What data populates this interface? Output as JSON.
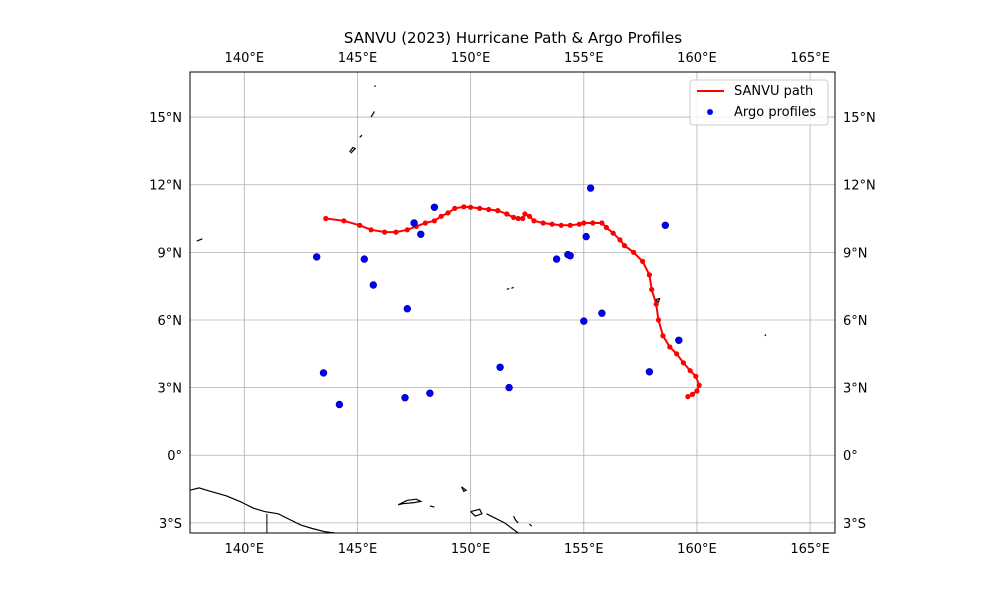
{
  "title": "SANVU (2023) Hurricane Path & Argo Profiles",
  "colors": {
    "path": "#ff0000",
    "argo": "#0000ff",
    "grid": "#b0b0b0",
    "coast": "#000000"
  },
  "chart_data": {
    "type": "map",
    "projection": "PlateCarree",
    "lon_range": [
      137.6,
      166.1
    ],
    "lat_range": [
      -3.45,
      17.0
    ],
    "lon_ticks": [
      {
        "value": 140,
        "label": "140°E"
      },
      {
        "value": 145,
        "label": "145°E"
      },
      {
        "value": 150,
        "label": "150°E"
      },
      {
        "value": 155,
        "label": "155°E"
      },
      {
        "value": 160,
        "label": "160°E"
      },
      {
        "value": 165,
        "label": "165°E"
      }
    ],
    "lat_ticks": [
      {
        "value": 15,
        "label": "15°N"
      },
      {
        "value": 12,
        "label": "12°N"
      },
      {
        "value": 9,
        "label": "9°N"
      },
      {
        "value": 6,
        "label": "6°N"
      },
      {
        "value": 3,
        "label": "3°N"
      },
      {
        "value": 0,
        "label": "0°"
      },
      {
        "value": -3,
        "label": "3°S"
      }
    ],
    "grid": true,
    "legend": {
      "placement": "top-right",
      "entries": [
        {
          "label": "SANVU path",
          "marker": "line"
        },
        {
          "label": "Argo profiles",
          "marker": "dot"
        }
      ]
    },
    "hurricane_path": [
      [
        143.6,
        10.5
      ],
      [
        144.4,
        10.4
      ],
      [
        145.1,
        10.2
      ],
      [
        145.6,
        10.0
      ],
      [
        146.2,
        9.9
      ],
      [
        146.7,
        9.9
      ],
      [
        147.2,
        10.0
      ],
      [
        147.6,
        10.15
      ],
      [
        148.0,
        10.3
      ],
      [
        148.4,
        10.4
      ],
      [
        148.7,
        10.6
      ],
      [
        149.0,
        10.75
      ],
      [
        149.3,
        10.95
      ],
      [
        149.7,
        11.02
      ],
      [
        150.0,
        11.0
      ],
      [
        150.4,
        10.95
      ],
      [
        150.8,
        10.9
      ],
      [
        151.2,
        10.85
      ],
      [
        151.6,
        10.7
      ],
      [
        151.9,
        10.55
      ],
      [
        152.1,
        10.5
      ],
      [
        152.3,
        10.5
      ],
      [
        152.4,
        10.7
      ],
      [
        152.6,
        10.6
      ],
      [
        152.8,
        10.4
      ],
      [
        153.2,
        10.3
      ],
      [
        153.6,
        10.25
      ],
      [
        154.0,
        10.2
      ],
      [
        154.4,
        10.2
      ],
      [
        154.8,
        10.25
      ],
      [
        155.0,
        10.3
      ],
      [
        155.4,
        10.3
      ],
      [
        155.8,
        10.3
      ],
      [
        156.0,
        10.1
      ],
      [
        156.3,
        9.85
      ],
      [
        156.6,
        9.55
      ],
      [
        156.8,
        9.3
      ],
      [
        157.2,
        9.0
      ],
      [
        157.6,
        8.6
      ],
      [
        157.9,
        8.0
      ],
      [
        158.0,
        7.35
      ],
      [
        158.2,
        6.7
      ],
      [
        158.3,
        6.0
      ],
      [
        158.5,
        5.3
      ],
      [
        158.8,
        4.8
      ],
      [
        159.1,
        4.5
      ],
      [
        159.4,
        4.1
      ],
      [
        159.7,
        3.75
      ],
      [
        159.95,
        3.5
      ],
      [
        160.1,
        3.1
      ],
      [
        160.0,
        2.85
      ],
      [
        159.8,
        2.7
      ],
      [
        159.6,
        2.6
      ]
    ],
    "argo_profiles": [
      [
        148.4,
        11.0
      ],
      [
        147.5,
        10.3
      ],
      [
        147.8,
        9.8
      ],
      [
        143.2,
        8.8
      ],
      [
        145.3,
        8.7
      ],
      [
        145.7,
        7.55
      ],
      [
        147.2,
        6.5
      ],
      [
        143.5,
        3.65
      ],
      [
        144.2,
        2.25
      ],
      [
        147.1,
        2.55
      ],
      [
        148.2,
        2.75
      ],
      [
        151.3,
        3.9
      ],
      [
        151.7,
        3.0
      ],
      [
        155.3,
        11.85
      ],
      [
        158.6,
        10.2
      ],
      [
        155.1,
        9.7
      ],
      [
        153.8,
        8.7
      ],
      [
        154.3,
        8.9
      ],
      [
        154.4,
        8.85
      ],
      [
        155.8,
        6.3
      ],
      [
        155.0,
        5.95
      ],
      [
        159.2,
        5.1
      ],
      [
        157.9,
        3.7
      ]
    ],
    "coastlines": [
      [
        [
          137.6,
          -1.55
        ],
        [
          138.0,
          -1.45
        ],
        [
          138.5,
          -1.6
        ],
        [
          139.2,
          -1.8
        ],
        [
          139.8,
          -2.05
        ],
        [
          140.4,
          -2.35
        ],
        [
          140.9,
          -2.5
        ],
        [
          141.5,
          -2.6
        ],
        [
          142.0,
          -2.85
        ],
        [
          142.5,
          -3.1
        ],
        [
          143.0,
          -3.25
        ],
        [
          143.6,
          -3.4
        ],
        [
          144.0,
          -3.45
        ]
      ],
      [
        [
          147.2,
          -2.0
        ],
        [
          147.6,
          -1.95
        ],
        [
          147.8,
          -2.05
        ],
        [
          147.5,
          -2.1
        ],
        [
          147.0,
          -2.15
        ],
        [
          146.8,
          -2.2
        ],
        [
          147.2,
          -2.0
        ]
      ],
      [
        [
          148.2,
          -2.25
        ],
        [
          148.4,
          -2.3
        ]
      ],
      [
        [
          149.6,
          -1.4
        ],
        [
          149.8,
          -1.55
        ],
        [
          149.7,
          -1.6
        ],
        [
          149.6,
          -1.4
        ]
      ],
      [
        [
          150.0,
          -2.5
        ],
        [
          150.4,
          -2.4
        ],
        [
          150.5,
          -2.6
        ],
        [
          150.2,
          -2.7
        ],
        [
          150.0,
          -2.5
        ]
      ],
      [
        [
          150.7,
          -2.6
        ],
        [
          151.0,
          -2.75
        ],
        [
          151.5,
          -3.0
        ],
        [
          151.9,
          -3.3
        ],
        [
          152.1,
          -3.45
        ]
      ],
      [
        [
          151.9,
          -2.7
        ],
        [
          152.0,
          -2.9
        ],
        [
          152.1,
          -3.0
        ]
      ],
      [
        [
          152.6,
          -3.05
        ],
        [
          152.7,
          -3.15
        ]
      ],
      [
        [
          144.7,
          13.4
        ],
        [
          144.9,
          13.6
        ],
        [
          144.8,
          13.65
        ],
        [
          144.65,
          13.45
        ]
      ],
      [
        [
          145.1,
          14.1
        ],
        [
          145.2,
          14.2
        ]
      ],
      [
        [
          145.6,
          15.0
        ],
        [
          145.75,
          15.25
        ]
      ],
      [
        [
          145.75,
          16.35
        ],
        [
          145.8,
          16.4
        ]
      ],
      [
        [
          137.9,
          9.5
        ],
        [
          138.15,
          9.6
        ]
      ],
      [
        [
          151.6,
          7.35
        ],
        [
          151.7,
          7.4
        ]
      ],
      [
        [
          151.8,
          7.4
        ],
        [
          151.9,
          7.45
        ]
      ],
      [
        [
          158.15,
          6.9
        ],
        [
          158.35,
          6.95
        ],
        [
          158.3,
          6.8
        ],
        [
          158.15,
          6.9
        ]
      ],
      [
        [
          163.0,
          5.3
        ],
        [
          163.05,
          5.35
        ]
      ]
    ],
    "borders": [
      [
        [
          141.0,
          -2.6
        ],
        [
          141.0,
          -3.45
        ]
      ]
    ]
  }
}
